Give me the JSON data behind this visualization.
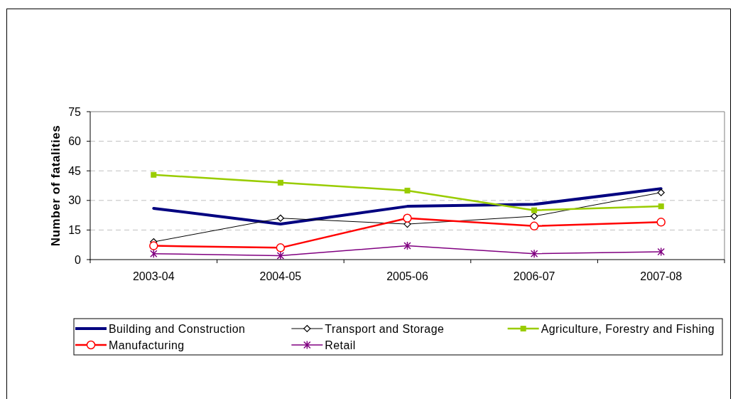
{
  "chart_data": {
    "type": "line",
    "ylabel": "Number of fatalities",
    "categories": [
      "2003-04",
      "2004-05",
      "2005-06",
      "2006-07",
      "2007-08"
    ],
    "ylim": [
      0,
      75
    ],
    "yticks": [
      0,
      15,
      30,
      45,
      60,
      75
    ],
    "grid": "y",
    "legend": "bottom",
    "series": [
      {
        "name": "Building and Construction",
        "color": "#000080",
        "marker": "none",
        "values": [
          26,
          18,
          27,
          28,
          36
        ]
      },
      {
        "name": "Transport and Storage",
        "color": "#000000",
        "marker": "diamond",
        "values": [
          9,
          21,
          18,
          22,
          34
        ]
      },
      {
        "name": "Agriculture, Forestry and Fishing",
        "color": "#99cc00",
        "marker": "square",
        "values": [
          43,
          39,
          35,
          25,
          27
        ]
      },
      {
        "name": "Manufacturing",
        "color": "#ff0000",
        "marker": "circle",
        "values": [
          7,
          6,
          21,
          17,
          19
        ]
      },
      {
        "name": "Retail",
        "color": "#800080",
        "marker": "cross",
        "values": [
          3,
          2,
          7,
          3,
          4
        ]
      }
    ]
  }
}
